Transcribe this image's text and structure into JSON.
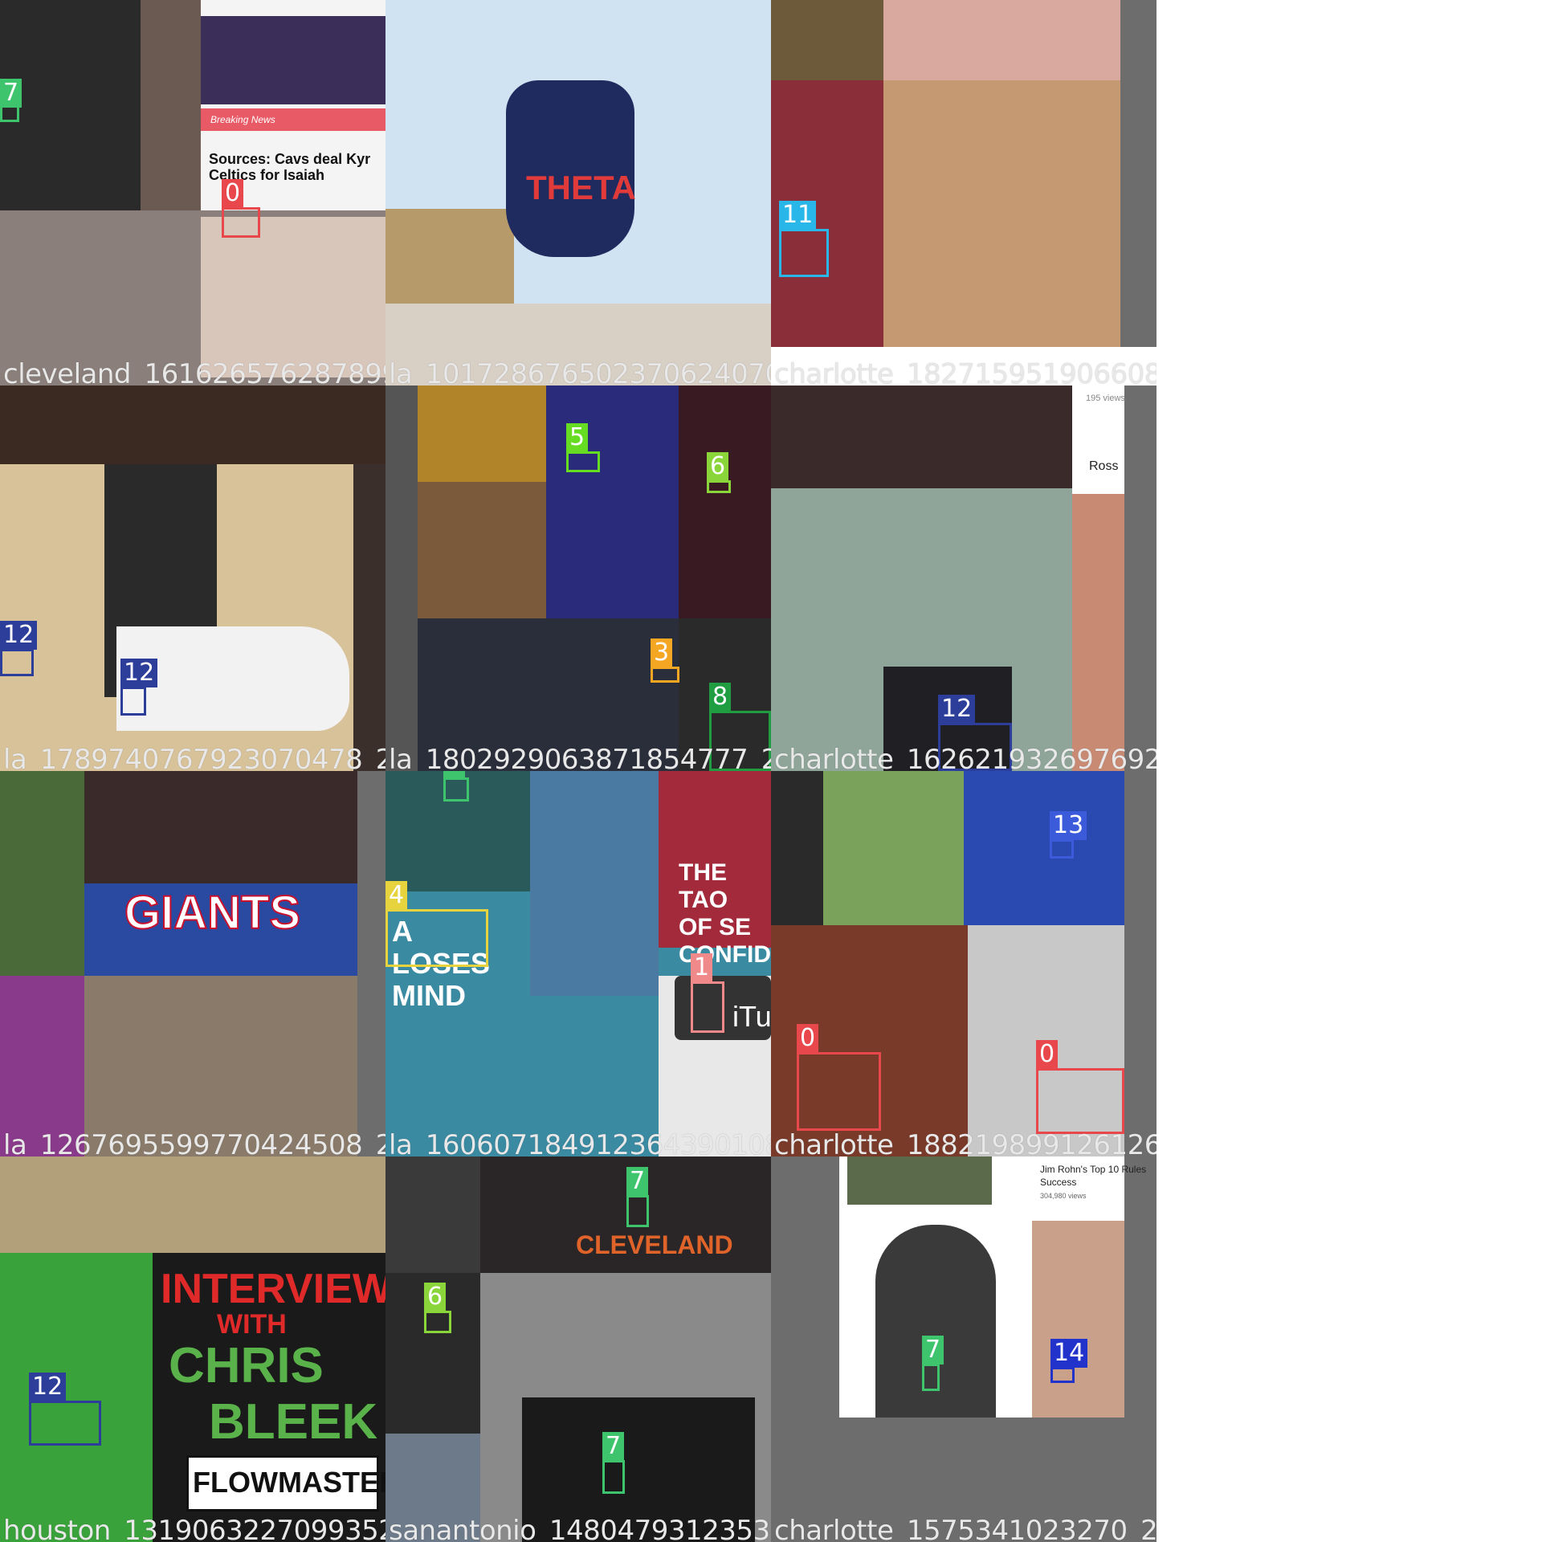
{
  "tiles": [
    {
      "filename": "cleveland_1616265762878994521_2"
    },
    {
      "filename": "la_1017286765023706240701_201"
    },
    {
      "filename": "charlotte_1827159519066080581_20180715_j"
    },
    {
      "filename": "la_1789740767923070478_201805"
    },
    {
      "filename": "la_1802929063871854777_2018"
    },
    {
      "filename": "charlotte_1626219326976926686092_20171204_jpg"
    },
    {
      "filename": "la_1267695599770424508_2016"
    },
    {
      "filename": "la_1606071849123643901087138"
    },
    {
      "filename": "charlotte_1882198991261260159499_20180722_j"
    },
    {
      "filename": "houston_1319063227099352"
    },
    {
      "filename": "sanantonio_148047931235353"
    },
    {
      "filename": "charlotte_1575341023270_20150423_jpg.rf.f9"
    }
  ],
  "labels": {
    "c0": {
      "text": "0",
      "color": "#e8474b"
    },
    "c1": {
      "text": "1",
      "color": "#f08a8a"
    },
    "c3": {
      "text": "3",
      "color": "#f5a623"
    },
    "c4": {
      "text": "4",
      "color": "#e6d33d"
    },
    "c5": {
      "text": "5",
      "color": "#66dd22"
    },
    "c6": {
      "text": "6",
      "color": "#8ad63a"
    },
    "c7": {
      "text": "7",
      "color": "#3ec46d"
    },
    "c8": {
      "text": "8",
      "color": "#1f9d40"
    },
    "c11": {
      "text": "11",
      "color": "#29b6e8"
    },
    "c12": {
      "text": "12",
      "color": "#2d3e9a"
    },
    "c13": {
      "text": "13",
      "color": "#3b5bdb"
    },
    "c14": {
      "text": "14",
      "color": "#2233cc"
    }
  },
  "texts": {
    "headline": "Sources: Cavs deal Kyr Celtics for Isaiah",
    "breaking": "Breaking News",
    "giants": "GIANTS",
    "interview": "INTERVIEW",
    "with": "WITH",
    "chris": "CHRIS",
    "bleek": "BLEEK",
    "flowmasters": "FLOWMASTERS",
    "cleveland": "CLEVELAND",
    "theta": "THETA",
    "tao": "THE TAO OF SE CONFIDEN",
    "loses": "A LOSES MIND",
    "jimrohn": "Jim Rohn's Top 10 Rules Success",
    "jimviews": "304,980 views",
    "ross": "Ross",
    "views195": "195 views",
    "itunes": "iTu"
  }
}
